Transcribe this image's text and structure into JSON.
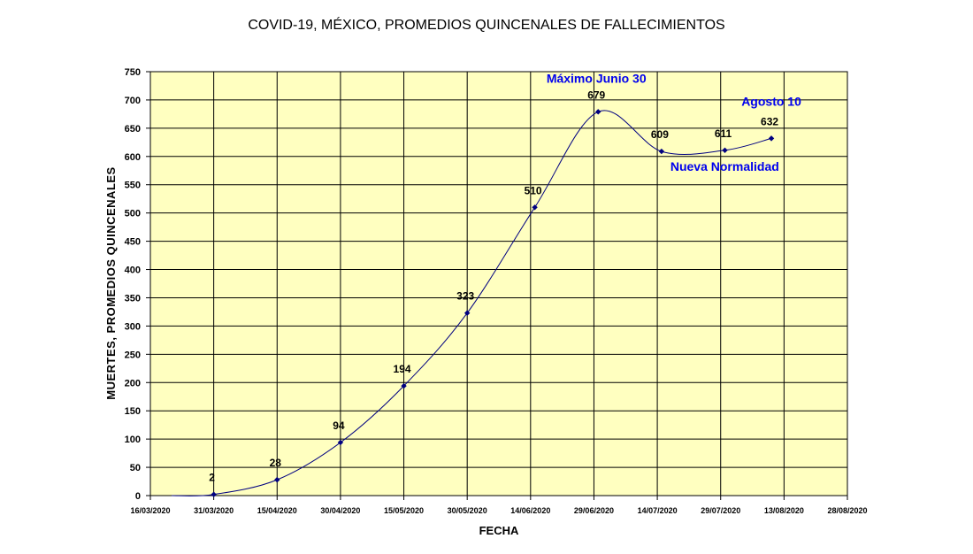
{
  "chart_data": {
    "type": "line",
    "title": "COVID-19, MÉXICO, PROMEDIOS QUINCENALES DE FALLECIMIENTOS",
    "xlabel": "FECHA",
    "ylabel": "MUERTES, PROMEDIOS QUINCENALES",
    "ylim": [
      0,
      750
    ],
    "yticks": [
      0,
      50,
      100,
      150,
      200,
      250,
      300,
      350,
      400,
      450,
      500,
      550,
      600,
      650,
      700,
      750
    ],
    "xlim": [
      "2020-03-16",
      "2020-08-28"
    ],
    "xticks": [
      "16/03/2020",
      "31/03/2020",
      "15/04/2020",
      "30/04/2020",
      "15/05/2020",
      "30/05/2020",
      "14/06/2020",
      "29/06/2020",
      "14/07/2020",
      "29/07/2020",
      "13/08/2020",
      "28/08/2020"
    ],
    "grid": true,
    "background_color": "#ffffc0",
    "line_color": "#000080",
    "annotation_color": "#0000ee",
    "series": [
      {
        "x": [
          "2020-03-31",
          "2020-04-15",
          "2020-04-30",
          "2020-05-15",
          "2020-05-30",
          "2020-06-15",
          "2020-06-30",
          "2020-07-15",
          "2020-07-30",
          "2020-08-10"
        ],
        "values": [
          2,
          28,
          94,
          194,
          323,
          510,
          679,
          609,
          611,
          632
        ],
        "labels": [
          "2",
          "28",
          "94",
          "194",
          "323",
          "510",
          "679",
          "609",
          "611",
          "632"
        ]
      }
    ],
    "annotations": [
      {
        "text": "Máximo Junio 30",
        "near": "2020-06-30"
      },
      {
        "text": "Nueva Normalidad",
        "near": "2020-07-15"
      },
      {
        "text": "Agosto 10",
        "near": "2020-08-10"
      }
    ]
  }
}
